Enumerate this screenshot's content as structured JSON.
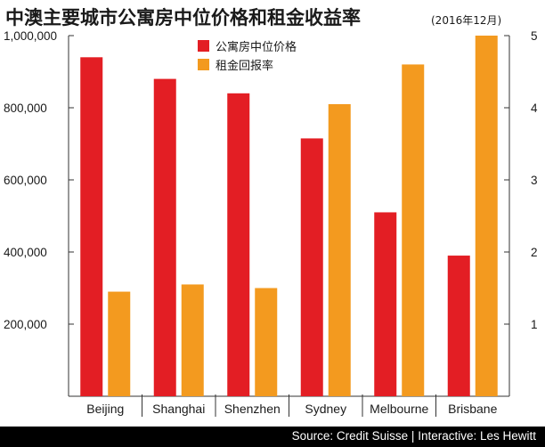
{
  "chart_data": {
    "type": "bar",
    "title": "中澳主要城市公寓房中位价格和租金收益率",
    "subtitle": "(2016年12月)",
    "categories": [
      "Beijing",
      "Shanghai",
      "Shenzhen",
      "Sydney",
      "Melbourne",
      "Brisbane"
    ],
    "series": [
      {
        "name": "公寓房中位价格",
        "axis": "left",
        "color": "#e31e24",
        "values": [
          940000,
          880000,
          840000,
          715000,
          510000,
          390000
        ]
      },
      {
        "name": "租金回报率",
        "axis": "right",
        "color": "#f39a1f",
        "values": [
          1.45,
          1.55,
          1.5,
          4.05,
          4.6,
          5.0
        ]
      }
    ],
    "ylim_left": [
      0,
      1000000
    ],
    "ylim_right": [
      0,
      5
    ],
    "left_ticks": [
      "1,000,000",
      "800,000",
      "600,000",
      "400,000",
      "200,000"
    ],
    "left_tick_values": [
      1000000,
      800000,
      600000,
      400000,
      200000
    ],
    "right_ticks": [
      "5",
      "4",
      "3",
      "2",
      "1"
    ],
    "right_tick_values": [
      5,
      4,
      3,
      2,
      1
    ],
    "grid": false,
    "legend_position": "top-center"
  },
  "footer": {
    "source": "Source: Credit Suisse | Interactive: Les Hewitt"
  }
}
